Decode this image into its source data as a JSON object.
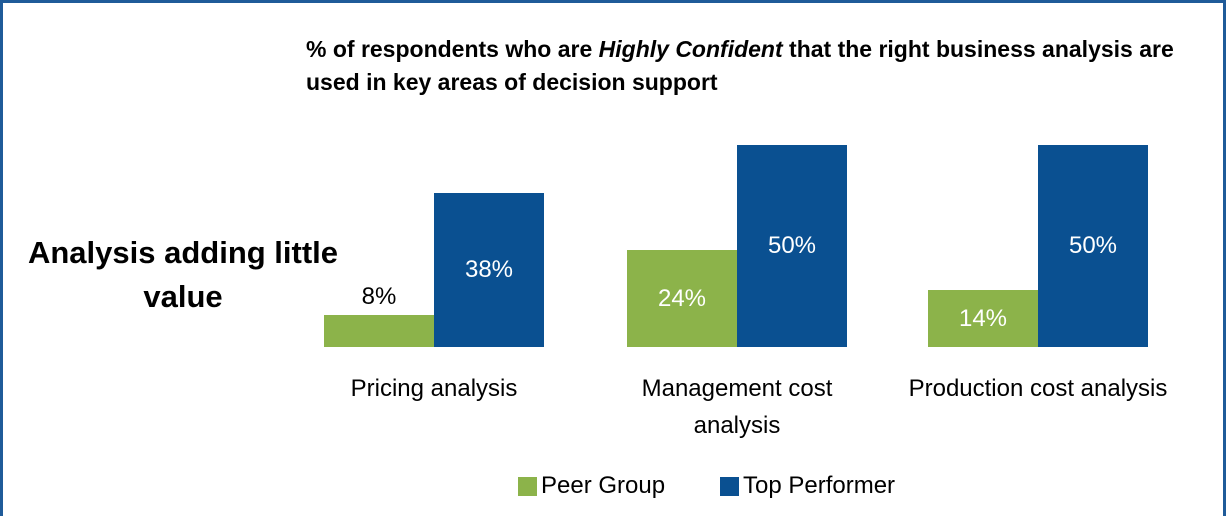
{
  "chart_data": {
    "type": "bar",
    "title": [
      "% of respondents who are ",
      "Highly Confident",
      " that the right business analysis are used in key areas of decision support"
    ],
    "annotation": "Analysis adding little value",
    "categories": [
      "Pricing analysis",
      "Management cost analysis",
      "Production cost analysis"
    ],
    "series": [
      {
        "name": "Peer Group",
        "color": "#8cb34a",
        "values": [
          8,
          24,
          14
        ],
        "value_labels": [
          "8%",
          "24%",
          "14%"
        ]
      },
      {
        "name": "Top Performer",
        "color": "#0a5091",
        "values": [
          38,
          50,
          50
        ],
        "value_labels": [
          "38%",
          "50%",
          "50%"
        ]
      }
    ],
    "legend": "bottom"
  }
}
